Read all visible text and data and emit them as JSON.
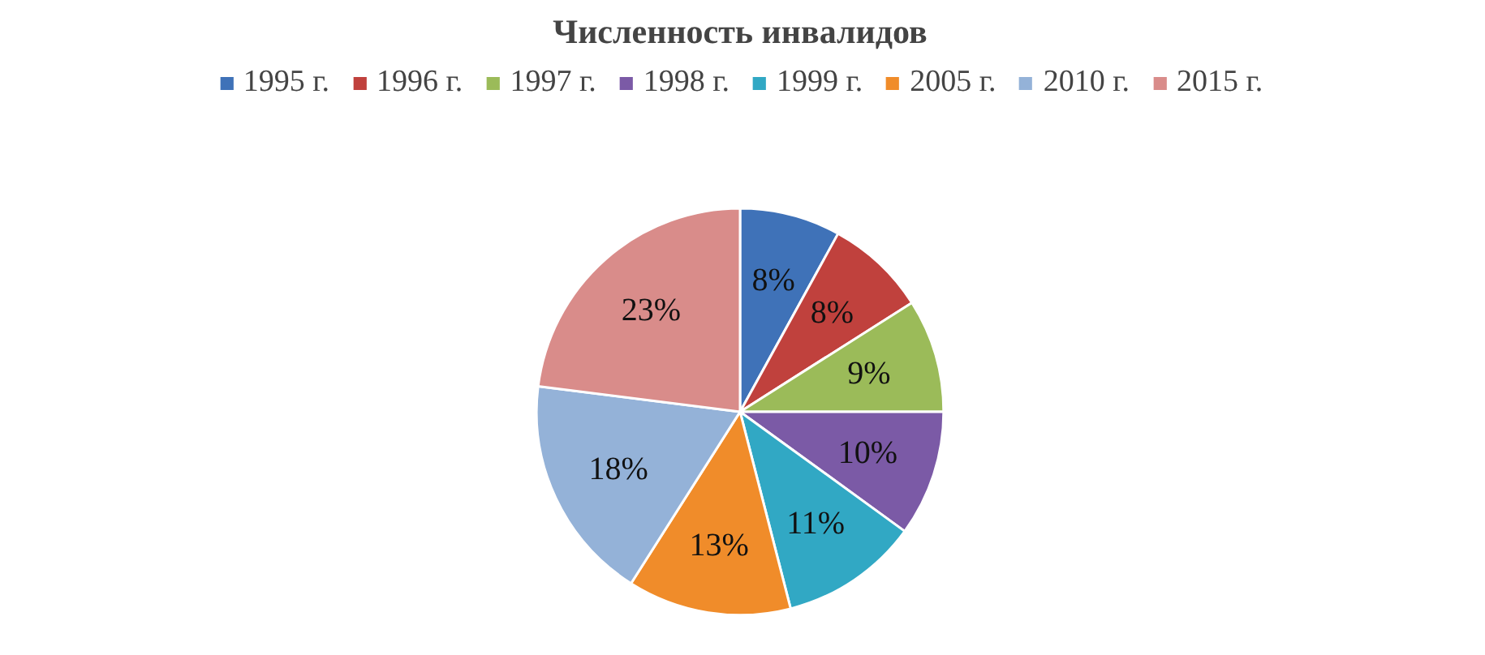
{
  "chart_data": {
    "type": "pie",
    "title": "Численность инвалидов",
    "categories": [
      "1995 г.",
      "1996 г.",
      "1997 г.",
      "1998 г.",
      "1999 г.",
      "2005 г.",
      "2010 г.",
      "2015 г."
    ],
    "values": [
      8,
      8,
      9,
      10,
      11,
      13,
      18,
      23
    ],
    "colors": [
      "#3f72b8",
      "#c0413d",
      "#9bbb59",
      "#7b5aa6",
      "#31a8c4",
      "#f08c2a",
      "#94b2d8",
      "#d98c8a"
    ],
    "value_labels": [
      "8%",
      "8%",
      "9%",
      "10%",
      "11%",
      "13%",
      "18%",
      "23%"
    ],
    "legend": "top"
  }
}
